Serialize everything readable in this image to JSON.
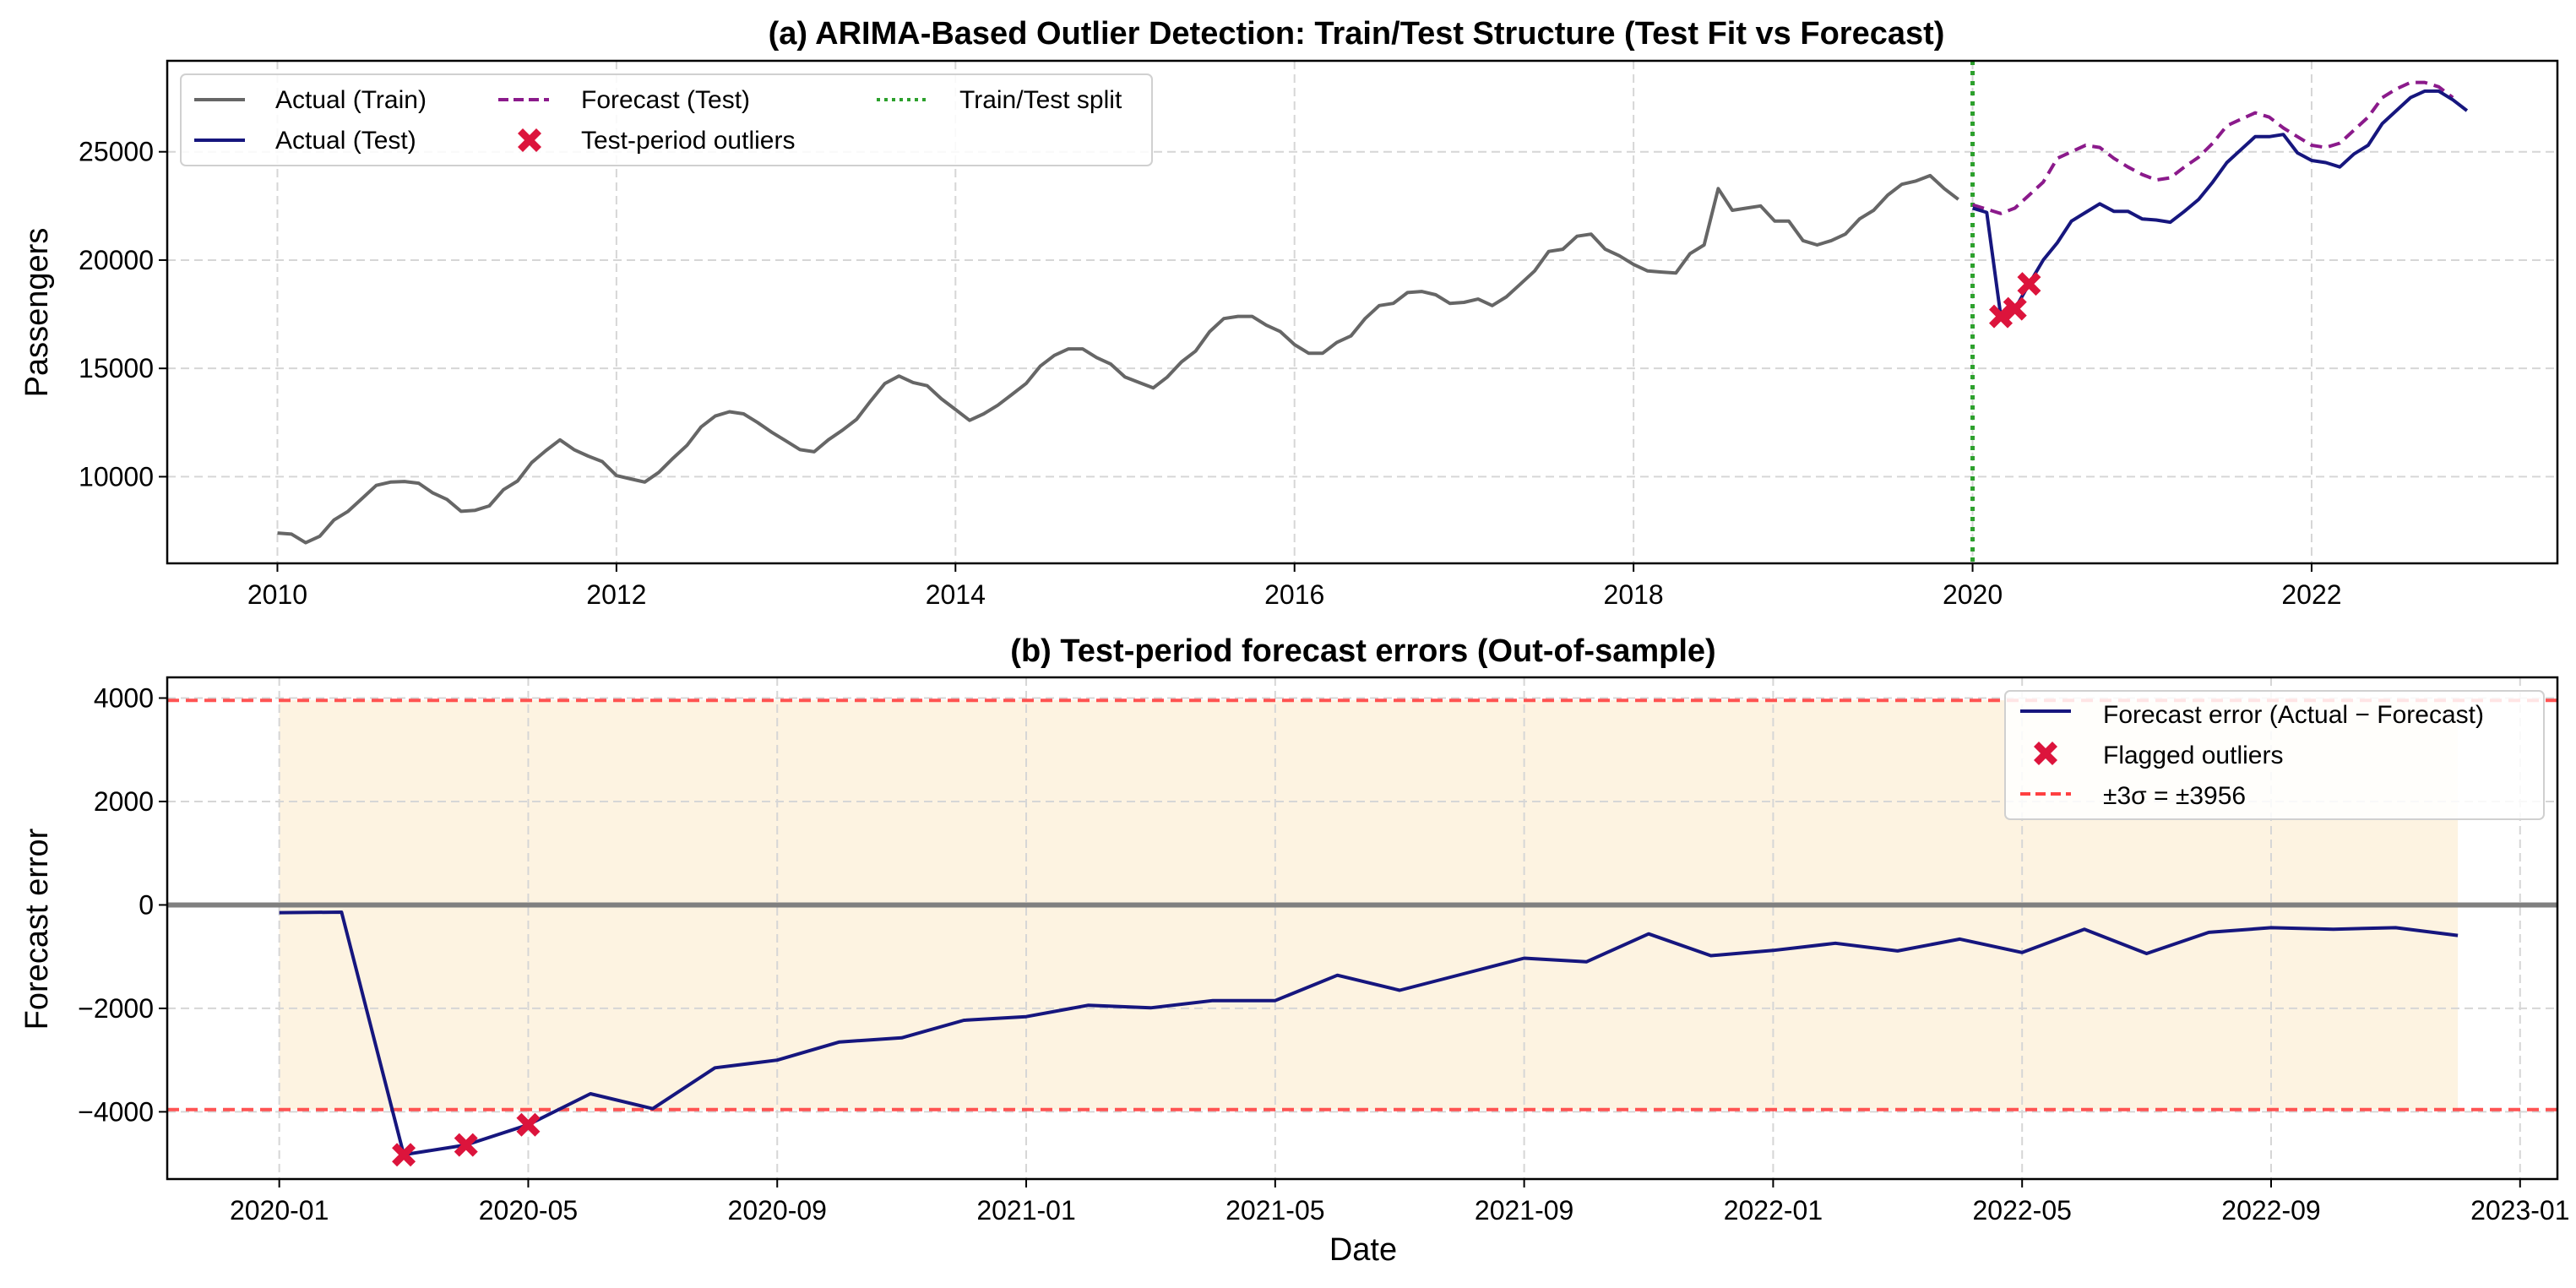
{
  "chart_data": [
    {
      "type": "line",
      "title": "(a) ARIMA-Based Outlier Detection: Train/Test Structure (Test Fit vs Forecast)",
      "xlabel": "",
      "ylabel": "Passengers",
      "xlim": [
        2009.35,
        2023.45
      ],
      "ylim": [
        6000,
        29200
      ],
      "xticks": [
        2010,
        2012,
        2014,
        2016,
        2018,
        2020,
        2022
      ],
      "xtick_labels": [
        "2010",
        "2012",
        "2014",
        "2016",
        "2018",
        "2020",
        "2022"
      ],
      "yticks": [
        10000,
        15000,
        20000,
        25000
      ],
      "ytick_labels": [
        "10000",
        "15000",
        "20000",
        "25000"
      ],
      "grid": true,
      "legend_position": "top-left",
      "split_x": 2020.0,
      "series": [
        {
          "name": "Actual (Train)",
          "color": "#666666",
          "style": "solid",
          "x_start": 2010.0,
          "x_step": 0.08333,
          "values": [
            7400,
            7350,
            6950,
            7250,
            8000,
            8400,
            9000,
            9600,
            9750,
            9780,
            9700,
            9250,
            8950,
            8400,
            8450,
            8650,
            9400,
            9800,
            10650,
            11200,
            11700,
            11250,
            10950,
            10700,
            10050,
            9900,
            9750,
            10200,
            10850,
            11450,
            12300,
            12800,
            13000,
            12900,
            12500,
            12050,
            11650,
            11250,
            11150,
            11700,
            12150,
            12650,
            13500,
            14300,
            14650,
            14350,
            14200,
            13600,
            13100,
            12600,
            12900,
            13300,
            13800,
            14300,
            15100,
            15600,
            15900,
            15900,
            15500,
            15200,
            14600,
            14350,
            14100,
            14600,
            15300,
            15800,
            16700,
            17300,
            17400,
            17400,
            17000,
            16700,
            16100,
            15700,
            15700,
            16200,
            16500,
            17300,
            17900,
            18000,
            18500,
            18550,
            18400,
            18000,
            18050,
            18200,
            17900,
            18300,
            18900,
            19500,
            20400,
            20500,
            21100,
            21200,
            20500,
            20200,
            19800,
            19500,
            19450,
            19400,
            20300,
            20700,
            23300,
            22300,
            22400,
            22500,
            21800,
            21800,
            20900,
            20700,
            20900,
            21200,
            21900,
            22300,
            23000,
            23500,
            23650,
            23900,
            23300,
            22800
          ]
        },
        {
          "name": "Actual (Test)",
          "color": "#16167e",
          "style": "solid",
          "x_start": 2020.0,
          "x_step": 0.08333,
          "values": [
            22400,
            22200,
            17400,
            17750,
            18900,
            20000,
            20800,
            21800,
            22200,
            22600,
            22250,
            22250,
            21900,
            21850,
            21750,
            22250,
            22800,
            23600,
            24500,
            25100,
            25700,
            25700,
            25800,
            24950,
            24600,
            24500,
            24300,
            24900,
            25300,
            26300,
            26900,
            27500,
            27800,
            27800,
            27400,
            26900
          ]
        },
        {
          "name": "Forecast (Test)",
          "color": "#8b1a8b",
          "style": "dashed",
          "x_start": 2020.0,
          "x_step": 0.08333,
          "values": [
            22550,
            22350,
            22150,
            22400,
            23000,
            23600,
            24700,
            25000,
            25300,
            25200,
            24700,
            24300,
            23950,
            23700,
            23800,
            24300,
            24750,
            25400,
            26200,
            26500,
            26800,
            26600,
            26100,
            25700,
            25300,
            25200,
            25400,
            26000,
            26600,
            27500,
            27900,
            28200,
            28200,
            28000,
            27500,
            null
          ]
        },
        {
          "name": "Test-period outliers",
          "color": "#dc143c",
          "style": "marker-x",
          "x": [
            2020.1667,
            2020.25,
            2020.3333
          ],
          "values": [
            17400,
            17750,
            18900
          ]
        },
        {
          "name": "Train/Test split",
          "color": "#2ca02c",
          "style": "dotted-vline",
          "x": [
            2020.0
          ]
        }
      ]
    },
    {
      "type": "line",
      "title": "(b) Test-period forecast errors (Out-of-sample)",
      "xlabel": "Date",
      "ylabel": "Forecast error",
      "xlim_months": [
        -1.8,
        36.6
      ],
      "ylim": [
        -5300,
        4400
      ],
      "xticks_months": [
        0,
        4,
        8,
        12,
        16,
        20,
        24,
        28,
        32,
        36
      ],
      "xtick_labels": [
        "2020-01",
        "2020-05",
        "2020-09",
        "2021-01",
        "2021-05",
        "2021-09",
        "2022-01",
        "2022-05",
        "2022-09",
        "2023-01"
      ],
      "yticks": [
        -4000,
        -2000,
        0,
        2000,
        4000
      ],
      "ytick_labels": [
        "−4000",
        "−2000",
        "0",
        "2000",
        "4000"
      ],
      "grid": true,
      "legend_position": "top-right",
      "threshold": 3956,
      "shaded_band": {
        "x_from_month": 0,
        "x_to_month": 35,
        "y_from": -3956,
        "y_to": 3956,
        "color": "#fdf3e1"
      },
      "zero_line_color": "#808080",
      "threshold_color": "#ff4040",
      "series": [
        {
          "name": "Forecast error (Actual − Forecast)",
          "color": "#16167e",
          "months": [
            0,
            1,
            2,
            3,
            4,
            5,
            6,
            7,
            8,
            9,
            10,
            11,
            12,
            13,
            14,
            15,
            16,
            17,
            18,
            19,
            20,
            21,
            22,
            23,
            24,
            25,
            26,
            27,
            28,
            29,
            30,
            31,
            32,
            33,
            34,
            35
          ],
          "values": [
            -150,
            -140,
            -4830,
            -4640,
            -4250,
            -3650,
            -3940,
            -3150,
            -3000,
            -2650,
            -2570,
            -2230,
            -2160,
            -1940,
            -1990,
            -1850,
            -1850,
            -1360,
            -1650,
            -1340,
            -1030,
            -1100,
            -560,
            -980,
            -880,
            -740,
            -890,
            -660,
            -920,
            -470,
            -940,
            -530,
            -440,
            -470,
            -440,
            -590
          ]
        },
        {
          "name": "Flagged outliers",
          "color": "#dc143c",
          "months": [
            2,
            3,
            4
          ],
          "values": [
            -4830,
            -4640,
            -4250
          ]
        },
        {
          "name": "±3σ = ±3956",
          "color": "#ff4040",
          "values": [
            3956,
            -3956
          ]
        }
      ]
    }
  ]
}
